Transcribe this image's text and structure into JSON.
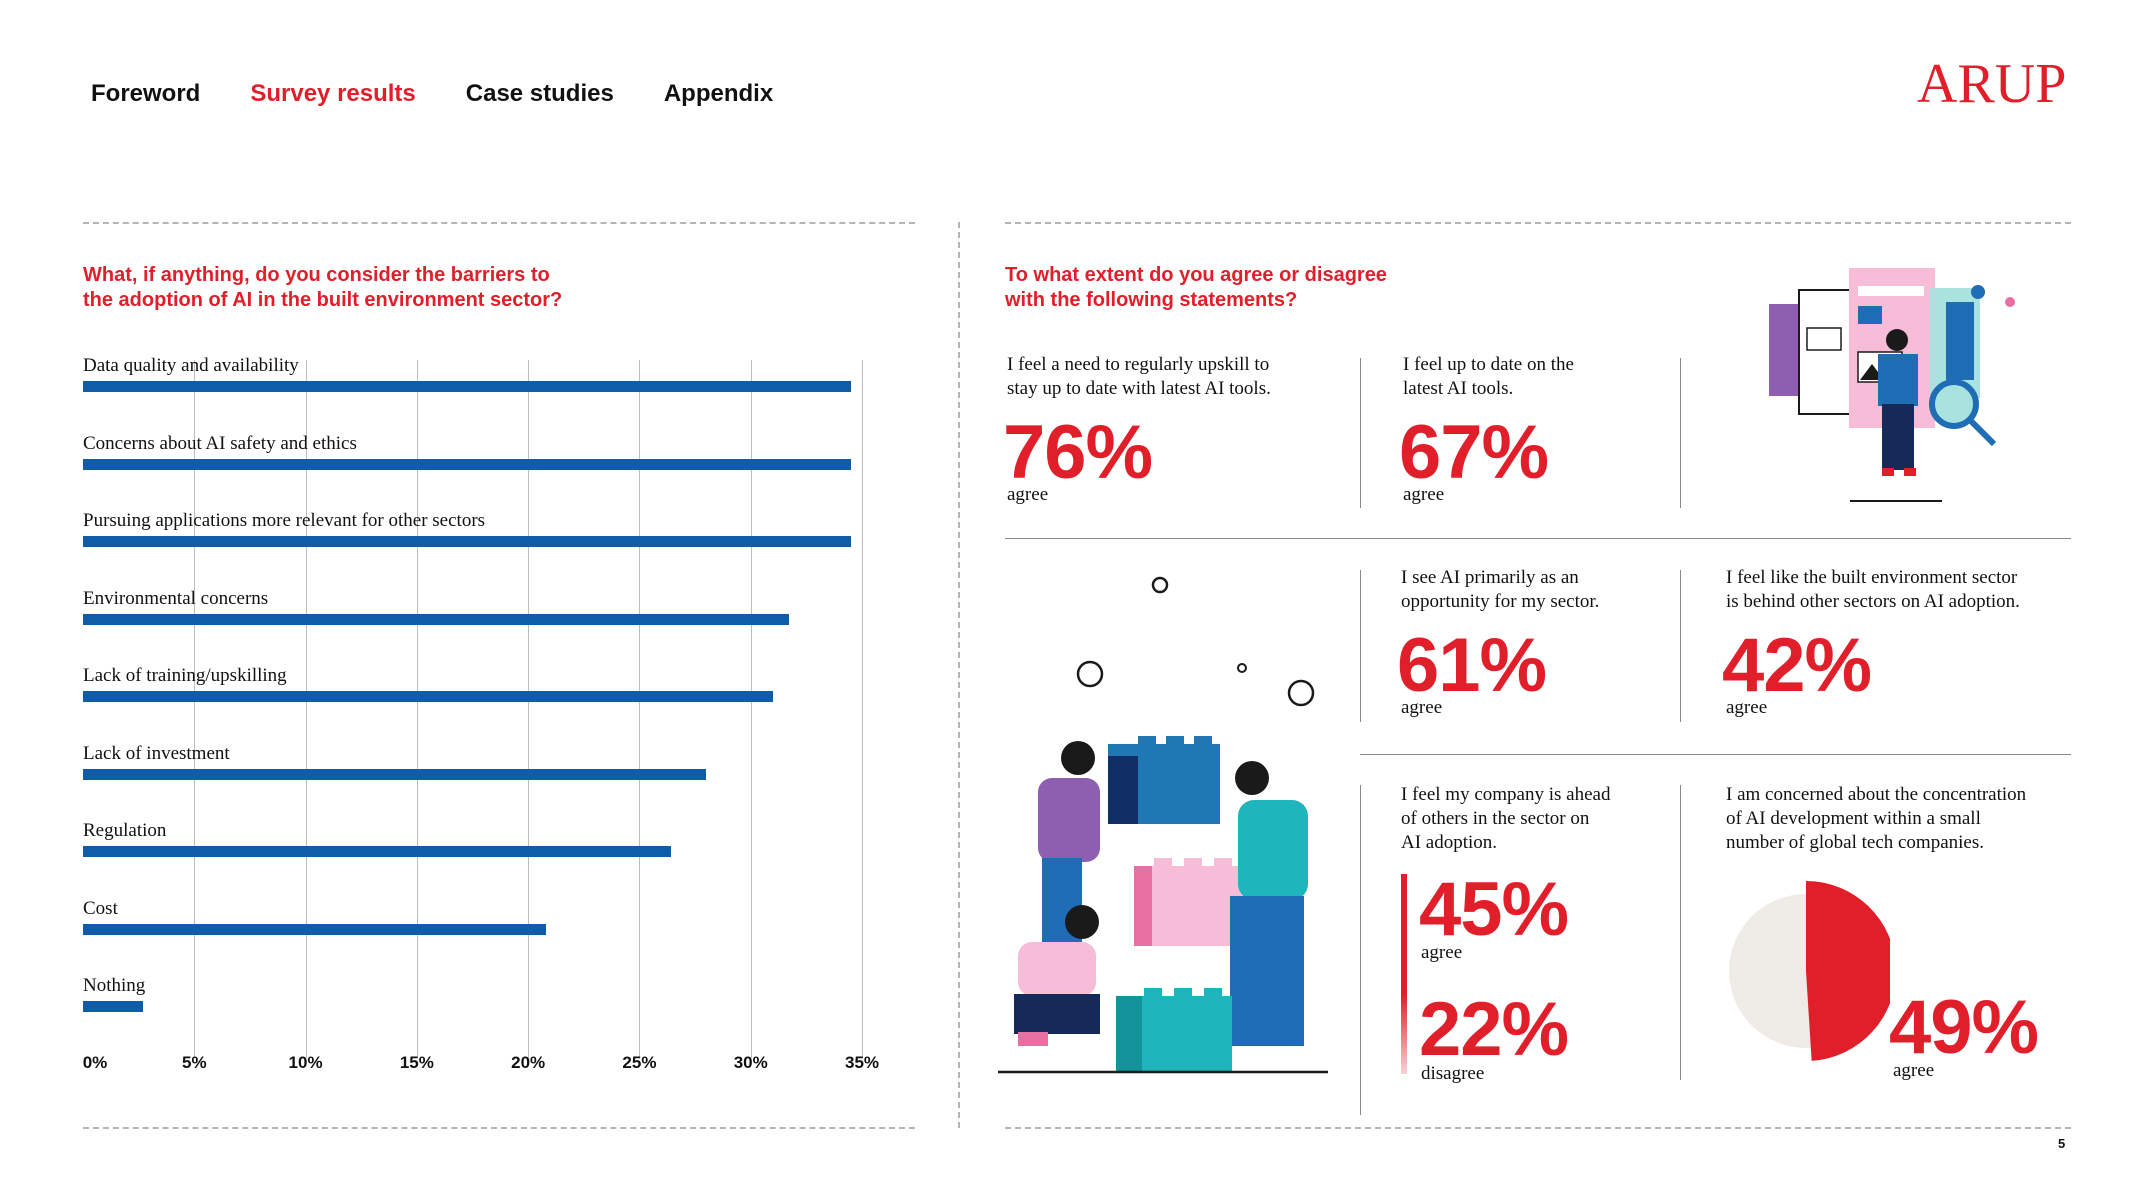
{
  "nav": {
    "items": [
      "Foreword",
      "Survey results",
      "Case studies",
      "Appendix"
    ],
    "active": "Survey results"
  },
  "brand": {
    "logo_text": "ARUP",
    "accent": "#e01f2a",
    "bar_color": "#0f5ca8"
  },
  "left_chart": {
    "question": "What, if anything, do you consider the barriers to the adoption of AI in the built environment sector?",
    "question_line1": "What, if anything, do you consider the barriers to",
    "question_line2": "the adoption of AI in the built environment sector?"
  },
  "chart_data": {
    "type": "bar",
    "orientation": "horizontal",
    "title": "What, if anything, do you consider the barriers to the adoption of AI in the built environment sector?",
    "categories": [
      "Data quality and availability",
      "Concerns about AI safety and ethics",
      "Pursuing applications more relevant for other sectors",
      "Environmental concerns",
      "Lack of training/upskilling",
      "Lack of investment",
      "Regulation",
      "Cost",
      "Nothing"
    ],
    "values": [
      34.5,
      34.5,
      34.5,
      31.7,
      31.0,
      28.0,
      26.4,
      20.8,
      2.7
    ],
    "unit": "%",
    "xlim": [
      0,
      35
    ],
    "ticks": [
      "0%",
      "5%",
      "10%",
      "15%",
      "20%",
      "25%",
      "30%",
      "35%"
    ],
    "grid": true,
    "xlabel": "",
    "ylabel": ""
  },
  "right": {
    "question_line1": "To what extent do you agree or disagree",
    "question_line2": "with the following statements?",
    "stats": [
      {
        "line1": "I feel a need to regularly upskill to",
        "line2": "stay up to date with latest AI tools.",
        "value": "76%",
        "label": "agree"
      },
      {
        "line1": "I feel up to date on the",
        "line2": "latest AI tools.",
        "value": "67%",
        "label": "agree"
      },
      {
        "line1": "I see AI primarily as an",
        "line2": "opportunity for my sector.",
        "value": "61%",
        "label": "agree"
      },
      {
        "line1": "I feel like the built environment sector",
        "line2": "is behind other sectors on AI adoption.",
        "value": "42%",
        "label": "agree"
      }
    ],
    "company": {
      "line1": "I feel my company is ahead",
      "line2": "of others in the sector on",
      "line3": "AI adoption.",
      "agree_value": "45%",
      "agree_label": "agree",
      "disagree_value": "22%",
      "disagree_label": "disagree"
    },
    "concentration": {
      "line1": "I am concerned about the concentration",
      "line2": "of AI development within a small",
      "line3": "number of global tech companies.",
      "value": "49%",
      "label": "agree",
      "fraction": 0.49
    }
  },
  "page_number": "5"
}
